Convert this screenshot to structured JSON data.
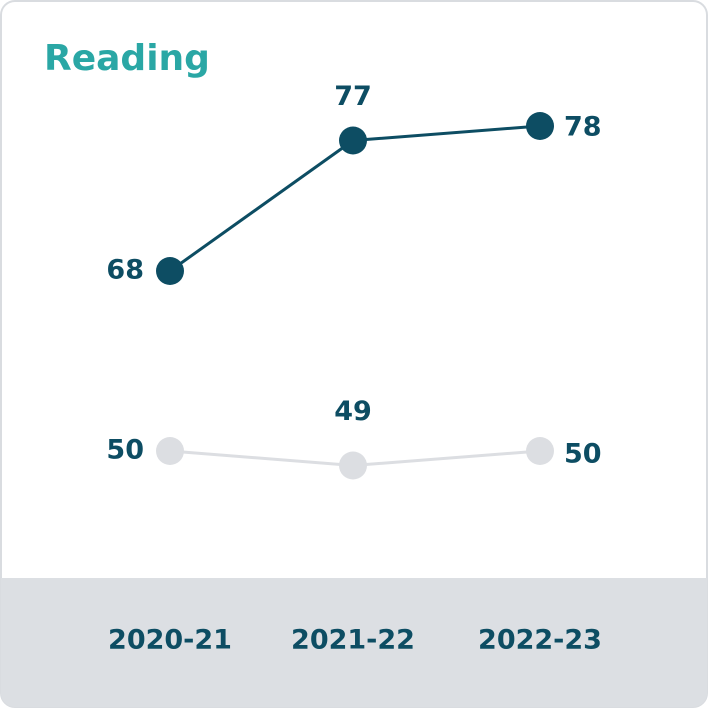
{
  "chart_data": {
    "type": "line",
    "title": "Reading",
    "categories": [
      "2020-21",
      "2021-22",
      "2022-23"
    ],
    "series": [
      {
        "color": "#0d4d63",
        "values": [
          68,
          77,
          78
        ]
      },
      {
        "color": "#dcdee2",
        "values": [
          50,
          49,
          50
        ]
      }
    ]
  }
}
